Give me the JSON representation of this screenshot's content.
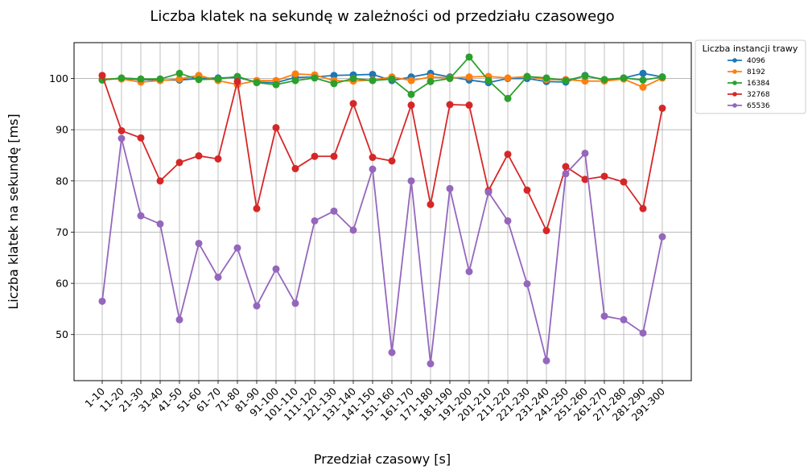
{
  "chart_data": {
    "type": "line",
    "title": "Liczba klatek na sekundę w zależności od przedziału czasowego",
    "xlabel": "Przedział czasowy [s]",
    "ylabel": "Liczba klatek na sekundę [ms]",
    "ylim": [
      41,
      107
    ],
    "yticks": [
      50,
      60,
      70,
      80,
      90,
      100
    ],
    "grid": true,
    "legend": {
      "title": "Liczba instancji trawy",
      "placement": "outside-top-right"
    },
    "categories": [
      "1-10",
      "11-20",
      "21-30",
      "31-40",
      "41-50",
      "51-60",
      "61-70",
      "71-80",
      "81-90",
      "91-100",
      "101-110",
      "111-120",
      "121-130",
      "131-140",
      "141-150",
      "151-160",
      "161-170",
      "171-180",
      "181-190",
      "191-200",
      "201-210",
      "211-220",
      "221-230",
      "231-240",
      "241-250",
      "251-260",
      "261-270",
      "271-280",
      "281-290",
      "291-300"
    ],
    "series": [
      {
        "name": "4096",
        "color": "#1f77b4",
        "values": [
          99.8,
          100.0,
          99.8,
          99.7,
          99.7,
          100.0,
          100.1,
          100.2,
          99.3,
          99.2,
          100.2,
          100.3,
          100.6,
          100.7,
          100.8,
          99.6,
          100.3,
          101.0,
          100.3,
          99.7,
          99.2,
          100.0,
          100.0,
          99.4,
          99.3,
          100.6,
          99.7,
          100.1,
          101.0,
          100.3
        ]
      },
      {
        "name": "8192",
        "color": "#ff7f0e",
        "values": [
          99.9,
          99.9,
          99.3,
          99.6,
          99.9,
          100.6,
          99.6,
          98.8,
          99.6,
          99.6,
          100.9,
          100.7,
          99.6,
          99.5,
          99.7,
          100.3,
          99.6,
          100.3,
          100.1,
          100.3,
          100.4,
          100.1,
          100.4,
          99.8,
          99.8,
          99.5,
          99.5,
          99.9,
          98.3,
          100.1
        ]
      },
      {
        "name": "16384",
        "color": "#2ca02c",
        "values": [
          99.7,
          100.1,
          99.9,
          99.9,
          101.0,
          99.8,
          99.9,
          100.4,
          99.2,
          98.8,
          99.6,
          100.1,
          99.0,
          100.0,
          99.6,
          99.9,
          96.9,
          99.4,
          100.0,
          104.2,
          99.6,
          96.1,
          100.4,
          100.1,
          99.6,
          100.5,
          99.8,
          100.1,
          99.7,
          100.3
        ]
      },
      {
        "name": "32768",
        "color": "#d62728",
        "values": [
          100.6,
          89.8,
          88.4,
          80.0,
          83.6,
          84.9,
          84.3,
          99.4,
          74.6,
          90.4,
          82.4,
          84.8,
          84.8,
          95.1,
          84.6,
          83.9,
          94.8,
          75.4,
          94.9,
          94.8,
          78.1,
          85.2,
          78.2,
          70.3,
          82.8,
          80.3,
          80.9,
          79.8,
          74.6,
          94.2
        ]
      },
      {
        "name": "65536",
        "color": "#9467bd",
        "values": [
          56.5,
          88.3,
          73.2,
          71.6,
          52.9,
          67.8,
          61.2,
          66.9,
          55.6,
          62.8,
          56.1,
          72.2,
          74.1,
          70.4,
          82.3,
          46.5,
          80.0,
          44.3,
          78.5,
          62.3,
          77.8,
          72.2,
          59.9,
          44.9,
          81.4,
          85.4,
          53.6,
          52.9,
          50.3,
          69.1
        ]
      }
    ]
  }
}
